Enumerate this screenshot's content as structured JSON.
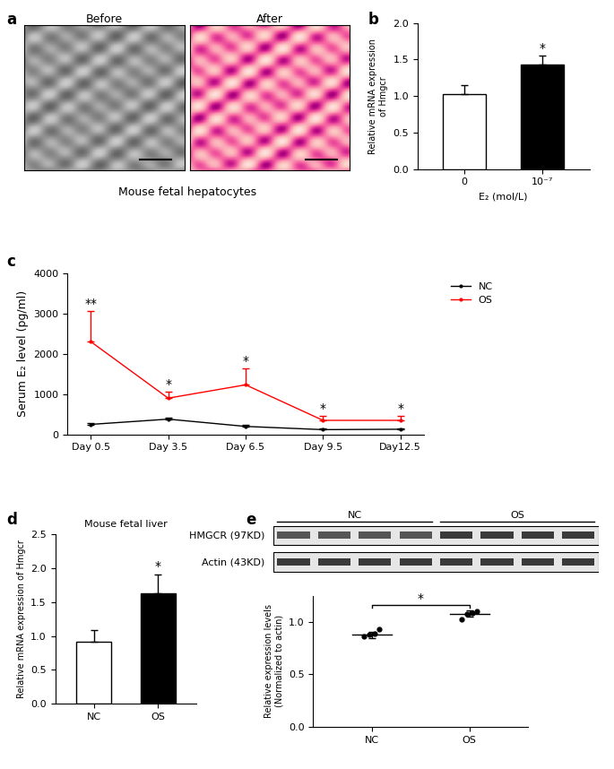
{
  "images": {
    "panel": "a",
    "titles": [
      "Before",
      "After"
    ],
    "caption": "Mouse fetal hepatocytes"
  },
  "chart_data": [
    {
      "panel": "b",
      "type": "bar",
      "categories": [
        "0",
        "10⁻⁷"
      ],
      "values": [
        1.03,
        1.43
      ],
      "errors": [
        0.12,
        0.12
      ],
      "colors": [
        "#ffffff",
        "#000000"
      ],
      "significance": [
        null,
        "*"
      ],
      "xlabel": "E₂ (mol/L)",
      "ylabel": "Relative mRNA expression\nof Hmgcr",
      "ylim": [
        0,
        2.0
      ],
      "yticks": [
        {
          "value": 0,
          "label": "0.0"
        },
        {
          "value": 0.5,
          "label": "0.5"
        },
        {
          "value": 1.0,
          "label": "1.0"
        },
        {
          "value": 1.5,
          "label": "1.5"
        },
        {
          "value": 2.0,
          "label": "2.0"
        }
      ]
    },
    {
      "panel": "c",
      "type": "line",
      "categories": [
        "Day 0.5",
        "Day 3.5",
        "Day 6.5",
        "Day 9.5",
        "Day12.5"
      ],
      "series": [
        {
          "name": "NC",
          "color": "#000000",
          "marker": "o",
          "values": [
            250,
            380,
            200,
            120,
            130
          ],
          "errors": [
            40,
            40,
            30,
            20,
            20
          ]
        },
        {
          "name": "OS",
          "color": "#ff0000",
          "marker": "o",
          "values": [
            2300,
            900,
            1230,
            350,
            350
          ],
          "errors": [
            750,
            150,
            400,
            100,
            100
          ]
        }
      ],
      "significance": [
        "**",
        "*",
        "*",
        "*",
        "*"
      ],
      "ylabel": "Serum E₂ level (pg/ml)",
      "ylim": [
        0,
        4000
      ],
      "yticks": [
        0,
        1000,
        2000,
        3000,
        4000
      ],
      "legend": "upper left"
    },
    {
      "panel": "d",
      "type": "bar",
      "title": "Mouse fetal liver",
      "categories": [
        "NC",
        "OS"
      ],
      "values": [
        0.92,
        1.63
      ],
      "errors": [
        0.17,
        0.28
      ],
      "colors": [
        "#ffffff",
        "#000000"
      ],
      "significance": [
        null,
        "*"
      ],
      "ylabel": "Relative mRNA expression of Hmgcr",
      "ylim": [
        0,
        2.5
      ],
      "yticks": [
        {
          "value": 0,
          "label": "0.0"
        },
        {
          "value": 0.5,
          "label": "0.5"
        },
        {
          "value": 1.0,
          "label": "1.0"
        },
        {
          "value": 1.5,
          "label": "1.5"
        },
        {
          "value": 2.0,
          "label": "2.0"
        },
        {
          "value": 2.5,
          "label": "2.5"
        }
      ]
    },
    {
      "panel": "e",
      "type": "blot",
      "groups": [
        "NC",
        "OS"
      ],
      "rows": [
        "HMGCR (97KD)",
        "Actin (43KD)"
      ]
    },
    {
      "type": "scatter",
      "categories": [
        "NC",
        "OS"
      ],
      "points": [
        [
          0.86,
          0.88,
          0.89,
          0.93
        ],
        [
          1.03,
          1.08,
          1.09,
          1.1
        ]
      ],
      "values": [
        0.88,
        1.08
      ],
      "errors": [
        0.03,
        0.03
      ],
      "color": "#000000",
      "significance": "*",
      "ylabel": "Relative expression levels\n(Normalized to actin)",
      "ylim": [
        0,
        1.25
      ],
      "yticks": [
        {
          "value": 0,
          "label": "0.0"
        },
        {
          "value": 0.5,
          "label": "0.5"
        },
        {
          "value": 1.0,
          "label": "1.0"
        }
      ]
    }
  ]
}
